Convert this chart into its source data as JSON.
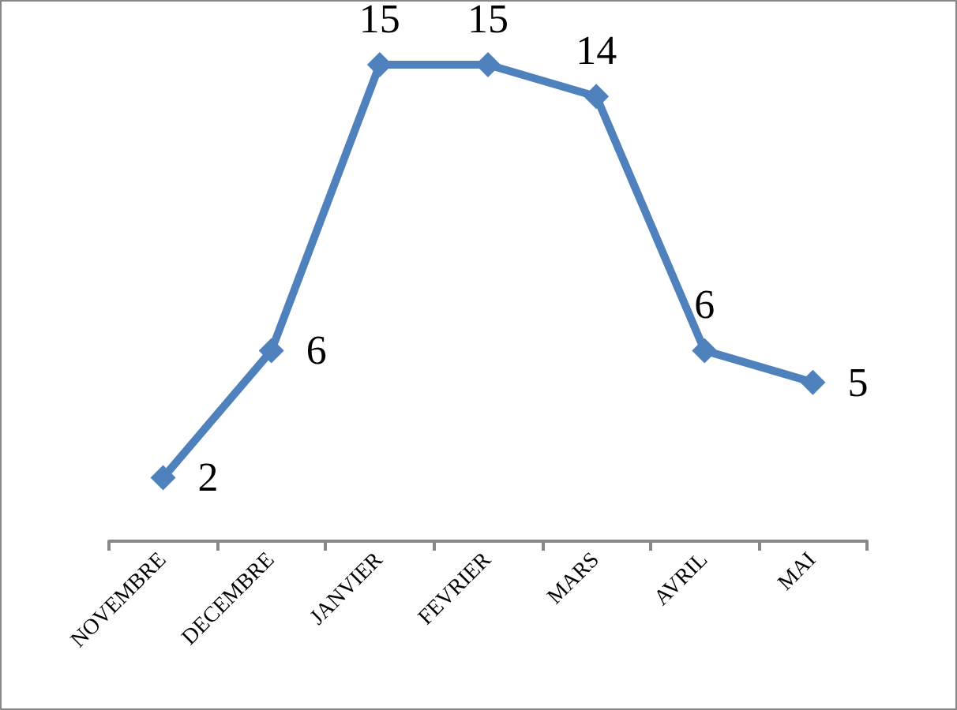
{
  "chart_data": {
    "type": "line",
    "categories": [
      "NOVEMBRE",
      "DECEMBRE",
      "JANVIER",
      "FEVRIER",
      "MARS",
      "AVRIL",
      "MAI"
    ],
    "values": [
      2,
      6,
      15,
      15,
      14,
      6,
      5
    ],
    "color": "#4f81bd",
    "marker": "diamond",
    "data_labels": true,
    "grid": false
  }
}
